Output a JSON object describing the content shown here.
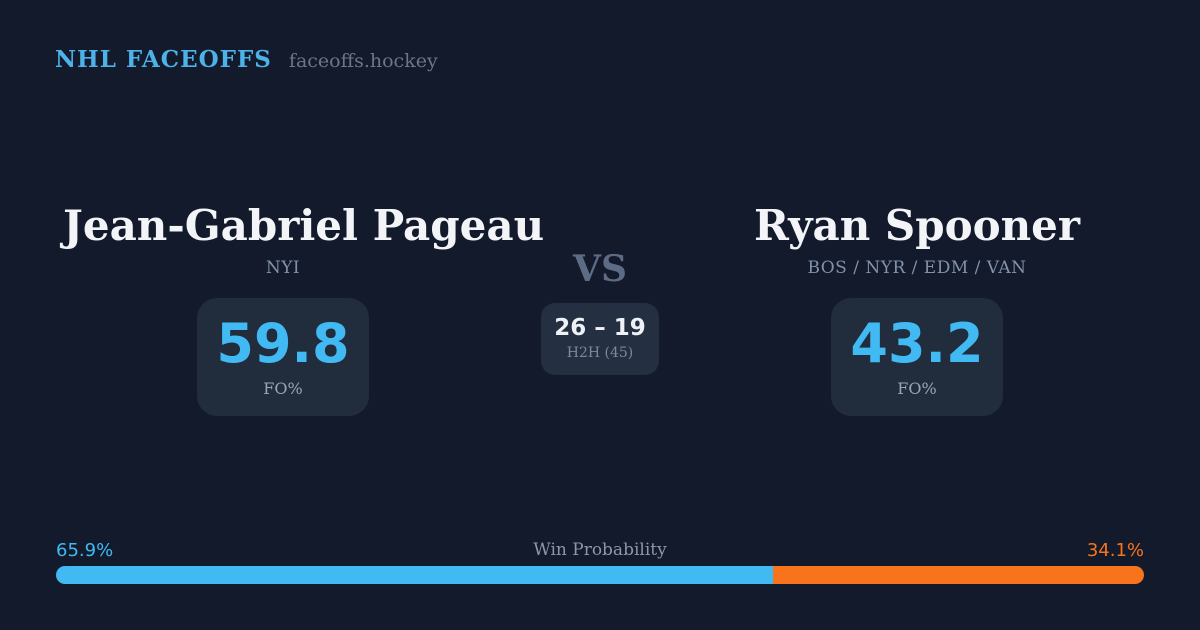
{
  "theme": {
    "bg": "#121a2b",
    "brand_blue": "#4db2e8",
    "accent_blue": "#41b9f2",
    "accent_orange": "#f7741c"
  },
  "header": {
    "brand": "NHL FACEOFFS",
    "domain": "faceoffs.hockey"
  },
  "matchup": {
    "vs_label": "VS",
    "player1": {
      "name": "Jean-Gabriel Pageau",
      "teams": "NYI",
      "fo_pct": "59.8",
      "fo_label": "FO%"
    },
    "player2": {
      "name": "Ryan Spooner",
      "teams": "BOS / NYR / EDM / VAN",
      "fo_pct": "43.2",
      "fo_label": "FO%"
    },
    "h2h": {
      "score": "26 – 19",
      "label": "H2H (45)"
    }
  },
  "win_probability": {
    "title": "Win Probability",
    "left_pct": "65.9%",
    "right_pct": "34.1%",
    "left_value": 65.9,
    "right_value": 34.1
  },
  "chart_data": {
    "type": "bar",
    "title": "Win Probability",
    "categories": [
      "Jean-Gabriel Pageau",
      "Ryan Spooner"
    ],
    "values": [
      65.9,
      34.1
    ],
    "unit": "%",
    "colors": [
      "#41b9f2",
      "#f7741c"
    ],
    "orientation": "horizontal-stacked",
    "xlim": [
      0,
      100
    ],
    "annotations": [
      "Jean-Gabriel Pageau FO% 59.8 (NYI)",
      "Ryan Spooner FO% 43.2 (BOS / NYR / EDM / VAN)",
      "Head-to-head 26 – 19 over 45 faceoffs"
    ]
  }
}
